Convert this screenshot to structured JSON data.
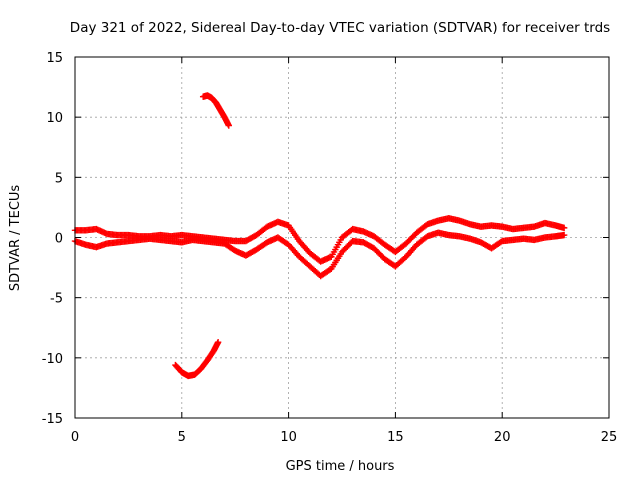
{
  "chart_data": {
    "type": "scatter",
    "title": "Day 321 of 2022, Sidereal Day-to-day VTEC variation (SDTVAR) for receiver trds",
    "xlabel": "GPS time / hours",
    "ylabel": "SDTVAR / TECUs",
    "xlim": [
      0,
      25
    ],
    "ylim": [
      -15,
      15
    ],
    "xticks": [
      0,
      5,
      10,
      15,
      20,
      25
    ],
    "yticks": [
      -15,
      -10,
      -5,
      0,
      5,
      10,
      15
    ],
    "grid": true,
    "legend": "none",
    "marker": "plus",
    "color": "#ff0000",
    "series": [
      {
        "name": "main-band-upper",
        "x": [
          0.0,
          0.5,
          1.0,
          1.5,
          2.0,
          2.5,
          3.0,
          3.5,
          4.0,
          4.5,
          5.0,
          5.5,
          6.0,
          6.5,
          7.0,
          7.5,
          8.0,
          8.5,
          9.0,
          9.5,
          10.0,
          10.5,
          11.0,
          11.5,
          12.0,
          12.5,
          13.0,
          13.5,
          14.0,
          14.5,
          15.0,
          15.5,
          16.0,
          16.5,
          17.0,
          17.5,
          18.0,
          18.5,
          19.0,
          19.5,
          20.0,
          20.5,
          21.0,
          21.5,
          22.0,
          22.5,
          22.9
        ],
        "y": [
          0.6,
          0.6,
          0.7,
          0.3,
          0.2,
          0.2,
          0.1,
          0.1,
          0.2,
          0.1,
          0.2,
          0.1,
          0.0,
          -0.1,
          -0.2,
          -0.3,
          -0.3,
          0.2,
          0.9,
          1.3,
          1.0,
          -0.3,
          -1.3,
          -2.0,
          -1.6,
          0.0,
          0.7,
          0.5,
          0.1,
          -0.6,
          -1.2,
          -0.5,
          0.4,
          1.1,
          1.4,
          1.6,
          1.4,
          1.1,
          0.9,
          1.0,
          0.9,
          0.7,
          0.8,
          0.9,
          1.2,
          1.0,
          0.8
        ]
      },
      {
        "name": "main-band-lower",
        "x": [
          0.0,
          0.5,
          1.0,
          1.5,
          2.0,
          2.5,
          3.0,
          3.5,
          4.0,
          4.5,
          5.0,
          5.5,
          6.0,
          6.5,
          7.0,
          7.5,
          8.0,
          8.5,
          9.0,
          9.5,
          10.0,
          10.5,
          11.0,
          11.5,
          12.0,
          12.5,
          13.0,
          13.5,
          14.0,
          14.5,
          15.0,
          15.5,
          16.0,
          16.5,
          17.0,
          17.5,
          18.0,
          18.5,
          19.0,
          19.5,
          20.0,
          20.5,
          21.0,
          21.5,
          22.0,
          22.5,
          22.9
        ],
        "y": [
          -0.3,
          -0.6,
          -0.8,
          -0.5,
          -0.4,
          -0.3,
          -0.2,
          -0.1,
          -0.2,
          -0.3,
          -0.4,
          -0.2,
          -0.3,
          -0.4,
          -0.5,
          -1.1,
          -1.5,
          -1.0,
          -0.4,
          0.0,
          -0.6,
          -1.6,
          -2.4,
          -3.2,
          -2.6,
          -1.2,
          -0.3,
          -0.4,
          -0.9,
          -1.8,
          -2.4,
          -1.6,
          -0.6,
          0.1,
          0.4,
          0.2,
          0.1,
          -0.1,
          -0.4,
          -0.9,
          -0.3,
          -0.2,
          -0.1,
          -0.2,
          0.0,
          0.1,
          0.2
        ]
      },
      {
        "name": "upper-arc",
        "x": [
          6.0,
          6.2,
          6.4,
          6.6,
          6.8,
          7.0,
          7.2
        ],
        "y": [
          11.7,
          11.8,
          11.6,
          11.2,
          10.6,
          10.0,
          9.3
        ]
      },
      {
        "name": "lower-arc",
        "x": [
          4.7,
          5.0,
          5.3,
          5.6,
          5.9,
          6.2,
          6.5,
          6.7
        ],
        "y": [
          -10.6,
          -11.2,
          -11.5,
          -11.4,
          -10.9,
          -10.2,
          -9.4,
          -8.7
        ]
      }
    ]
  }
}
